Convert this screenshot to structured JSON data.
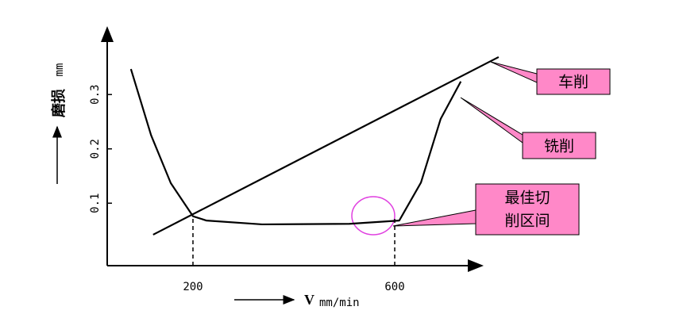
{
  "chart_data": {
    "type": "line",
    "x_label": "V",
    "x_unit": "mm/min",
    "y_label": "磨损",
    "y_unit": "mm",
    "xlim": [
      30,
      770
    ],
    "ylim": [
      -0.015,
      0.42
    ],
    "xticks": [
      200,
      600
    ],
    "yticks": [
      0.1,
      0.2,
      0.3
    ],
    "series": [
      {
        "name": "车削",
        "color": "#000000",
        "x": [
          121,
          806
        ],
        "values": [
          0.042,
          0.369
        ]
      },
      {
        "name": "铣削",
        "color": "#000000",
        "x": [
          77,
          117,
          156,
          200,
          227,
          337,
          510,
          609,
          652,
          691,
          731
        ],
        "values": [
          0.347,
          0.225,
          0.137,
          0.076,
          0.068,
          0.061,
          0.062,
          0.068,
          0.138,
          0.255,
          0.324
        ]
      }
    ],
    "annotation": {
      "lines": [
        "最佳切",
        "削区间"
      ]
    }
  }
}
